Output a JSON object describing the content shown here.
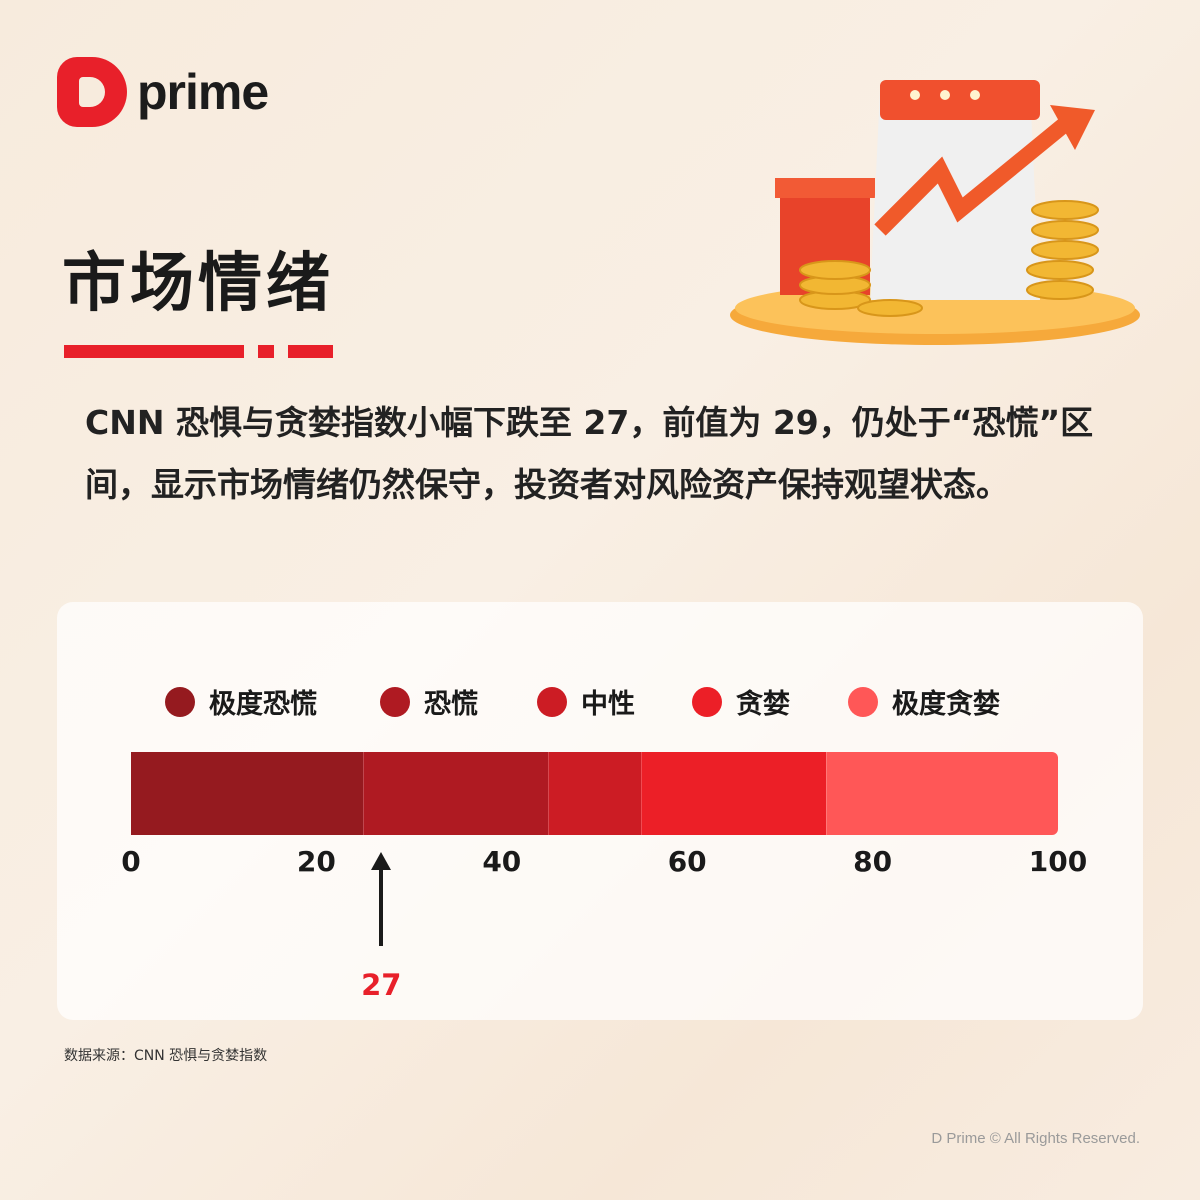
{
  "brand": {
    "name": "prime",
    "logo_letter": "D"
  },
  "title": "市场情绪",
  "description": "CNN 恐惧与贪婪指数小幅下跌至 27，前值为 29，仍处于“恐慌”区间，显示市场情绪仍然保守，投资者对风险资产保持观望状态。",
  "chart_data": {
    "type": "bar",
    "categories": [
      "极度恐慌",
      "恐慌",
      "中性",
      "贪婪",
      "极度贪婪"
    ],
    "ranges": [
      [
        0,
        25
      ],
      [
        25,
        45
      ],
      [
        45,
        55
      ],
      [
        55,
        75
      ],
      [
        75,
        100
      ]
    ],
    "colors": [
      "#951a1f",
      "#af1a22",
      "#cc1c24",
      "#ec1f27",
      "#ff5757"
    ],
    "ticks": [
      "0",
      "20",
      "40",
      "60",
      "80",
      "100"
    ],
    "xlim": [
      0,
      100
    ],
    "current_value": 27,
    "current_label": "27",
    "legend_position": "top"
  },
  "source": "数据来源：CNN 恐惧与贪婪指数",
  "copyright": "D Prime © All Rights Reserved."
}
